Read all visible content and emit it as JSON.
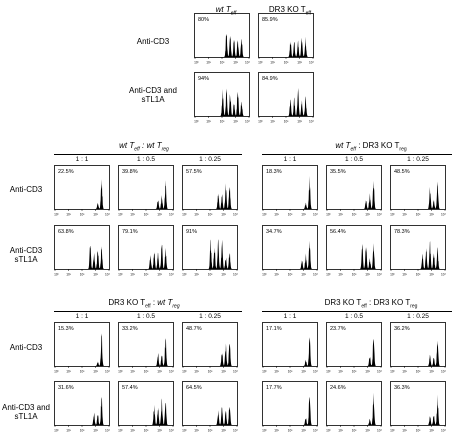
{
  "top_block": {
    "headers": [
      {
        "pre": "wt T",
        "sub": "eff",
        "italic": true
      },
      {
        "pre": "DR3 KO T",
        "sub": "eff",
        "italic": false
      }
    ],
    "row_labels": [
      "Anti-CD3",
      "Anti-CD3 and sTL1A"
    ],
    "panels": [
      {
        "pct": "80%"
      },
      {
        "pct": "85.9%"
      },
      {
        "pct": "94%"
      },
      {
        "pct": "84.9%"
      }
    ]
  },
  "axis_ticks": [
    "10⁰",
    "10¹",
    "10²",
    "10³",
    "10⁴"
  ],
  "middle_block": {
    "row_labels": [
      "Anti-CD3",
      "Anti-CD3 sTL1A"
    ],
    "groups": [
      {
        "title": "wt T_eff : wt T_reg",
        "title_parts": {
          "a": "wt T",
          "a_sub": "eff",
          "sep": " : ",
          "b": "wt T",
          "b_sub": "reg"
        },
        "ratios": [
          "1 : 1",
          "1 : 0.5",
          "1 : 0.25"
        ],
        "rows": [
          [
            "22.5%",
            "39.8%",
            "57.5%"
          ],
          [
            "63.8%",
            "79.1%",
            "91%"
          ]
        ]
      },
      {
        "title": "wt T_eff : DR3 KO T_reg",
        "title_parts": {
          "a": "wt T",
          "a_sub": "eff",
          "sep": " : ",
          "b": "DR3 KO T",
          "b_sub": "reg"
        },
        "ratios": [
          "1 : 1",
          "1 : 0.5",
          "1 : 0.25"
        ],
        "rows": [
          [
            "18.3%",
            "35.5%",
            "48.5%"
          ],
          [
            "34.7%",
            "56.4%",
            "78.3%"
          ]
        ]
      }
    ]
  },
  "bottom_block": {
    "row_labels": [
      "Anti-CD3",
      "Anti-CD3 and sTL1A"
    ],
    "groups": [
      {
        "title": "DR3 KO T_eff : wt T_reg",
        "title_parts": {
          "a": "DR3 KO T",
          "a_sub": "eff",
          "sep": " : ",
          "b": "wt T",
          "b_sub": "reg"
        },
        "ratios": [
          "1 : 1",
          "1 : 0.5",
          "1 : 0.25"
        ],
        "rows": [
          [
            "15.3%",
            "33.2%",
            "48.7%"
          ],
          [
            "31.6%",
            "57.4%",
            "64.5%"
          ]
        ]
      },
      {
        "title": "DR3 KO T_eff : DR3 KO T_reg",
        "title_parts": {
          "a": "DR3 KO T",
          "a_sub": "eff",
          "sep": " : ",
          "b": "DR3 KO T",
          "b_sub": "reg"
        },
        "ratios": [
          "1 : 1",
          "1 : 0.5",
          "1 : 0.25"
        ],
        "rows": [
          [
            "17.1%",
            "23.7%",
            "36.2%"
          ],
          [
            "17.7%",
            "24.6%",
            "36.3%"
          ]
        ]
      }
    ]
  }
}
